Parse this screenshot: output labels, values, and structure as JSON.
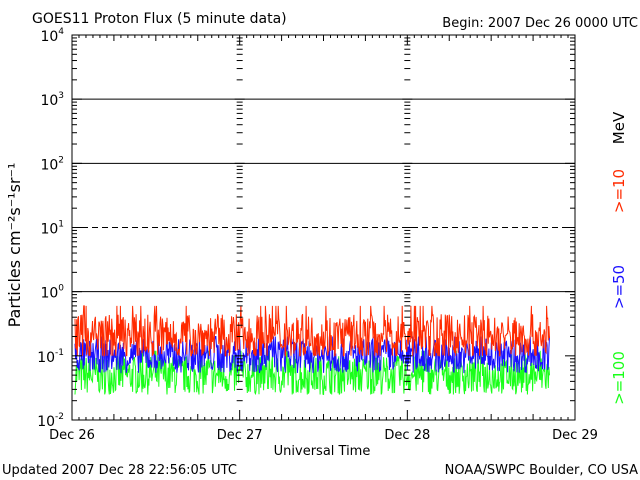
{
  "header": {
    "title": "GOES11 Proton Flux (5 minute data)",
    "begin": "Begin:  2007 Dec 26 0000 UTC"
  },
  "footer": {
    "updated": "Updated 2007 Dec 28 22:56:05 UTC",
    "credit": "NOAA/SWPC Boulder, CO USA"
  },
  "colors": {
    "ge10": "#ff2a00",
    "ge50": "#1a10ff",
    "ge100": "#1aff1a",
    "frame": "#000000"
  },
  "chart_data": {
    "type": "line",
    "title": "GOES11 Proton Flux (5 minute data)",
    "xlabel": "Universal Time",
    "ylabel": "Particles cm⁻²s⁻¹sr⁻¹",
    "yscale": "log",
    "ylim": [
      0.01,
      10000
    ],
    "y_ticks": [
      {
        "value": 0.01,
        "base": "10",
        "exp": "-2"
      },
      {
        "value": 0.1,
        "base": "10",
        "exp": "-1"
      },
      {
        "value": 1,
        "base": "10",
        "exp": "0"
      },
      {
        "value": 10,
        "base": "10",
        "exp": "1"
      },
      {
        "value": 100,
        "base": "10",
        "exp": "2"
      },
      {
        "value": 1000,
        "base": "10",
        "exp": "3"
      },
      {
        "value": 10000,
        "base": "10",
        "exp": "4"
      }
    ],
    "xlim": [
      "2007-12-26 00:00",
      "2007-12-29 00:00"
    ],
    "x_tick_labels": [
      "Dec 26",
      "Dec 27",
      "Dec 28",
      "Dec 29"
    ],
    "reference_levels": [
      {
        "value": 1,
        "style": "solid"
      },
      {
        "value": 10,
        "style": "dashed"
      },
      {
        "value": 100,
        "style": "solid"
      },
      {
        "value": 1000,
        "style": "solid"
      }
    ],
    "legend": {
      "unit": "MeV",
      "placement": "right, vertical",
      "entries": [
        ">=10",
        ">=50",
        ">=100"
      ]
    },
    "series": [
      {
        "name": ">=10",
        "color": "#ff2a00",
        "cadence_minutes": 5,
        "typical": 0.2,
        "range": [
          0.1,
          0.6
        ]
      },
      {
        "name": ">=50",
        "color": "#1a10ff",
        "cadence_minutes": 5,
        "typical": 0.1,
        "range": [
          0.05,
          0.2
        ]
      },
      {
        "name": ">=100",
        "color": "#1aff1a",
        "cadence_minutes": 5,
        "typical": 0.05,
        "range": [
          0.025,
          0.12
        ]
      }
    ]
  }
}
